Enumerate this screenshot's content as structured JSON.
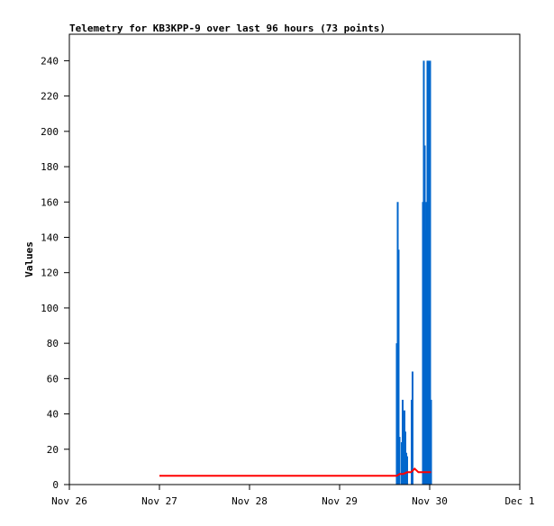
{
  "chart_data": {
    "type": "bar",
    "title": "Telemetry for KB3KPP-9 over last 96 hours (73 points)",
    "xlabel": "",
    "ylabel": "Values",
    "xlim": [
      "Nov 26 00:00",
      "Dec 1 00:00"
    ],
    "ylim": [
      0,
      255
    ],
    "x_ticks": [
      "Nov 26",
      "Nov 27",
      "Nov 28",
      "Nov 29",
      "Nov 30",
      "Dec 1"
    ],
    "y_ticks": [
      0,
      20,
      40,
      60,
      80,
      100,
      120,
      140,
      160,
      180,
      200,
      220,
      240
    ],
    "grid": false,
    "series": [
      {
        "type": "bar",
        "color": "#0066cc",
        "points": [
          [
            "Nov 29 15:14",
            80
          ],
          [
            "Nov 29 15:29",
            160
          ],
          [
            "Nov 29 15:43",
            133
          ],
          [
            "Nov 29 15:58",
            27
          ],
          [
            "Nov 29 16:34",
            24
          ],
          [
            "Nov 29 16:48",
            48
          ],
          [
            "Nov 29 17:17",
            42
          ],
          [
            "Nov 29 17:31",
            30
          ],
          [
            "Nov 29 17:46",
            18
          ],
          [
            "Nov 29 18:00",
            16
          ],
          [
            "Nov 29 19:12",
            48
          ],
          [
            "Nov 29 19:26",
            64
          ],
          [
            "Nov 29 22:12",
            160
          ],
          [
            "Nov 29 22:26",
            240
          ],
          [
            "Nov 29 22:41",
            192
          ],
          [
            "Nov 29 22:55",
            144
          ],
          [
            "Nov 29 23:10",
            160
          ],
          [
            "Nov 29 23:24",
            240
          ],
          [
            "Nov 29 23:38",
            240
          ],
          [
            "Nov 29 23:53",
            96
          ],
          [
            "Nov 30 00:07",
            240
          ],
          [
            "Nov 30 00:22",
            48
          ]
        ]
      },
      {
        "type": "line",
        "color": "#ff0000",
        "points": [
          [
            "Nov 27 00:00",
            5
          ],
          [
            "Nov 29 15:14",
            5
          ],
          [
            "Nov 29 16:00",
            6
          ],
          [
            "Nov 29 17:00",
            6
          ],
          [
            "Nov 29 18:00",
            7
          ],
          [
            "Nov 29 19:00",
            7
          ],
          [
            "Nov 29 20:00",
            9
          ],
          [
            "Nov 29 20:30",
            8
          ],
          [
            "Nov 29 21:00",
            7
          ],
          [
            "Nov 29 22:00",
            7
          ],
          [
            "Nov 30 00:22",
            7
          ]
        ]
      }
    ]
  }
}
